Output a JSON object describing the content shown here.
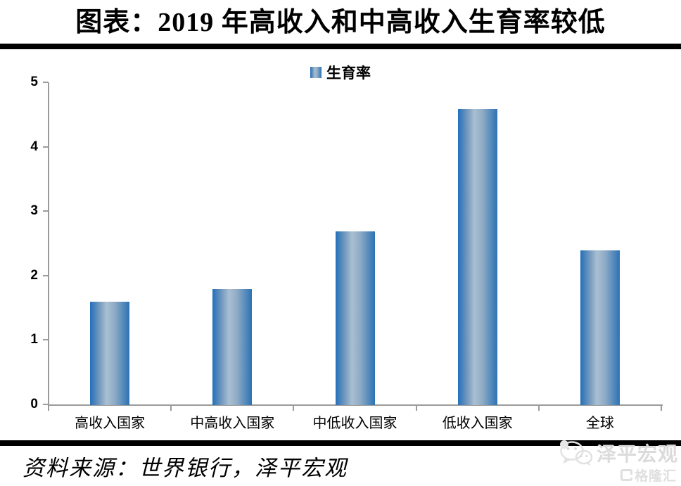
{
  "title": "图表：2019 年高收入和中高收入生育率较低",
  "legend": {
    "label": "生育率"
  },
  "chart_data": {
    "type": "bar",
    "title": "2019 年高收入和中高收入生育率较低",
    "categories": [
      "高收入国家",
      "中高收入国家",
      "中低收入国家",
      "低收入国家",
      "全球"
    ],
    "series": [
      {
        "name": "生育率",
        "values": [
          1.6,
          1.8,
          2.7,
          4.6,
          2.4
        ]
      }
    ],
    "xlabel": "",
    "ylabel": "",
    "ylim": [
      0,
      5
    ],
    "yticks": [
      0,
      1,
      2,
      3,
      4,
      5
    ],
    "grid": false,
    "legend_position": "top-center",
    "colors": {
      "bar_edge": "#2470B9",
      "bar_center": "#A9BFD1",
      "axis": "#9B9B9B",
      "text": "#000000"
    }
  },
  "footer": {
    "source": "资料来源：世界银行，泽平宏观"
  },
  "watermark": {
    "wechat_name": "泽平宏观",
    "platform_name": "格隆汇"
  }
}
